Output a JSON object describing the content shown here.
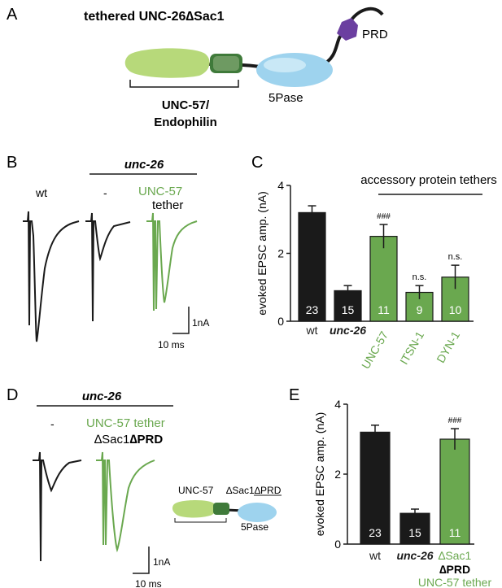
{
  "colors": {
    "black": "#1a1a1a",
    "green": "#6aa84f",
    "label_green": "#6aa84f"
  },
  "panels": {
    "A": {
      "letter": "A",
      "title": "tethered UNC-26∆Sac1",
      "prd_label": "PRD",
      "pase_label": "5Pase",
      "bracket_label_1": "UNC-57/",
      "bracket_label_2": "Endophilin"
    },
    "B": {
      "letter": "B",
      "genotype": "unc-26",
      "wt_label": "wt",
      "dash_label": "-",
      "tether_label_1": "UNC-57",
      "tether_label_2": "tether",
      "scale_y": "1nA",
      "scale_x": "10 ms"
    },
    "D": {
      "letter": "D",
      "genotype": "unc-26",
      "dash_label": "-",
      "tether_label_1": "UNC-57 tether",
      "tether_label_2a": "∆Sac1",
      "tether_label_2b": "∆PRD",
      "mini_unc57": "UNC-57",
      "mini_sac": "∆Sac1∆PRD",
      "mini_pase": "5Pase",
      "scale_y": "1nA",
      "scale_x": "10 ms"
    }
  },
  "chart_data": [
    {
      "panel": "C",
      "type": "bar",
      "ylabel": "evoked EPSC amp. (nA)",
      "ylim": [
        0,
        4
      ],
      "yticks": [
        "0",
        "2",
        "4"
      ],
      "bracket_label": "accessory protein tethers",
      "categories": [
        "wt",
        "unc-26",
        "UNC-57",
        "ITSN-1",
        "DYN-1"
      ],
      "values": [
        3.2,
        0.9,
        2.5,
        0.85,
        1.3
      ],
      "errors": [
        0.2,
        0.15,
        0.35,
        0.2,
        0.35
      ],
      "n": [
        "23",
        "15",
        "11",
        "9",
        "10"
      ],
      "sig": [
        "",
        "",
        "###",
        "n.s.",
        "n.s."
      ],
      "bar_colors": [
        "#1a1a1a",
        "#1a1a1a",
        "#6aa84f",
        "#6aa84f",
        "#6aa84f"
      ]
    },
    {
      "panel": "E",
      "type": "bar",
      "ylabel": "evoked EPSC amp. (nA)",
      "ylim": [
        0,
        4
      ],
      "yticks": [
        "0",
        "2",
        "4"
      ],
      "categories": [
        "wt",
        "unc-26",
        "∆Sac1"
      ],
      "category_extra": [
        "∆PRD",
        "UNC-57 tether"
      ],
      "values": [
        3.2,
        0.88,
        3.0
      ],
      "errors": [
        0.2,
        0.12,
        0.3
      ],
      "n": [
        "23",
        "15",
        "11"
      ],
      "sig": [
        "",
        "",
        "###"
      ],
      "bar_colors": [
        "#1a1a1a",
        "#1a1a1a",
        "#6aa84f"
      ]
    }
  ]
}
